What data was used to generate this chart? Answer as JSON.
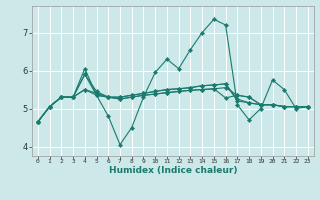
{
  "xlabel": "Humidex (Indice chaleur)",
  "background_color": "#cce8e8",
  "grid_color": "#ffffff",
  "line_color": "#1a7a6e",
  "xlim": [
    -0.5,
    23.5
  ],
  "ylim": [
    3.75,
    7.7
  ],
  "yticks": [
    4,
    5,
    6,
    7
  ],
  "xticks": [
    0,
    1,
    2,
    3,
    4,
    5,
    6,
    7,
    8,
    9,
    10,
    11,
    12,
    13,
    14,
    15,
    16,
    17,
    18,
    19,
    20,
    21,
    22,
    23
  ],
  "series": [
    [
      4.65,
      5.05,
      5.3,
      5.3,
      6.05,
      5.35,
      4.8,
      4.05,
      4.5,
      5.3,
      5.95,
      6.3,
      6.05,
      6.55,
      7.0,
      7.35,
      7.2,
      5.1,
      4.7,
      5.0,
      5.75,
      5.5,
      5.0,
      5.05
    ],
    [
      4.65,
      5.05,
      5.3,
      5.3,
      5.9,
      5.35,
      5.3,
      5.3,
      5.35,
      5.4,
      5.45,
      5.5,
      5.52,
      5.55,
      5.6,
      5.62,
      5.65,
      5.2,
      5.15,
      5.1,
      5.1,
      5.05,
      5.05,
      5.05
    ],
    [
      4.65,
      5.05,
      5.3,
      5.3,
      5.5,
      5.4,
      5.3,
      5.25,
      5.3,
      5.35,
      5.38,
      5.42,
      5.45,
      5.48,
      5.5,
      5.52,
      5.55,
      5.35,
      5.3,
      5.1,
      5.1,
      5.05,
      5.05,
      5.05
    ],
    [
      4.65,
      5.05,
      5.3,
      5.3,
      5.9,
      5.45,
      5.3,
      5.3,
      5.35,
      5.4,
      5.45,
      5.5,
      5.52,
      5.55,
      5.6,
      5.62,
      5.65,
      5.25,
      5.15,
      5.1,
      5.1,
      5.05,
      5.05,
      5.05
    ],
    [
      4.65,
      5.05,
      5.3,
      5.3,
      5.5,
      5.35,
      5.3,
      5.25,
      5.3,
      5.35,
      5.38,
      5.42,
      5.45,
      5.48,
      5.5,
      5.52,
      5.28,
      5.35,
      5.3,
      5.1,
      5.1,
      5.05,
      5.05,
      5.05
    ]
  ],
  "marker": "D",
  "marker_size": 2.2,
  "linewidth": 0.8
}
